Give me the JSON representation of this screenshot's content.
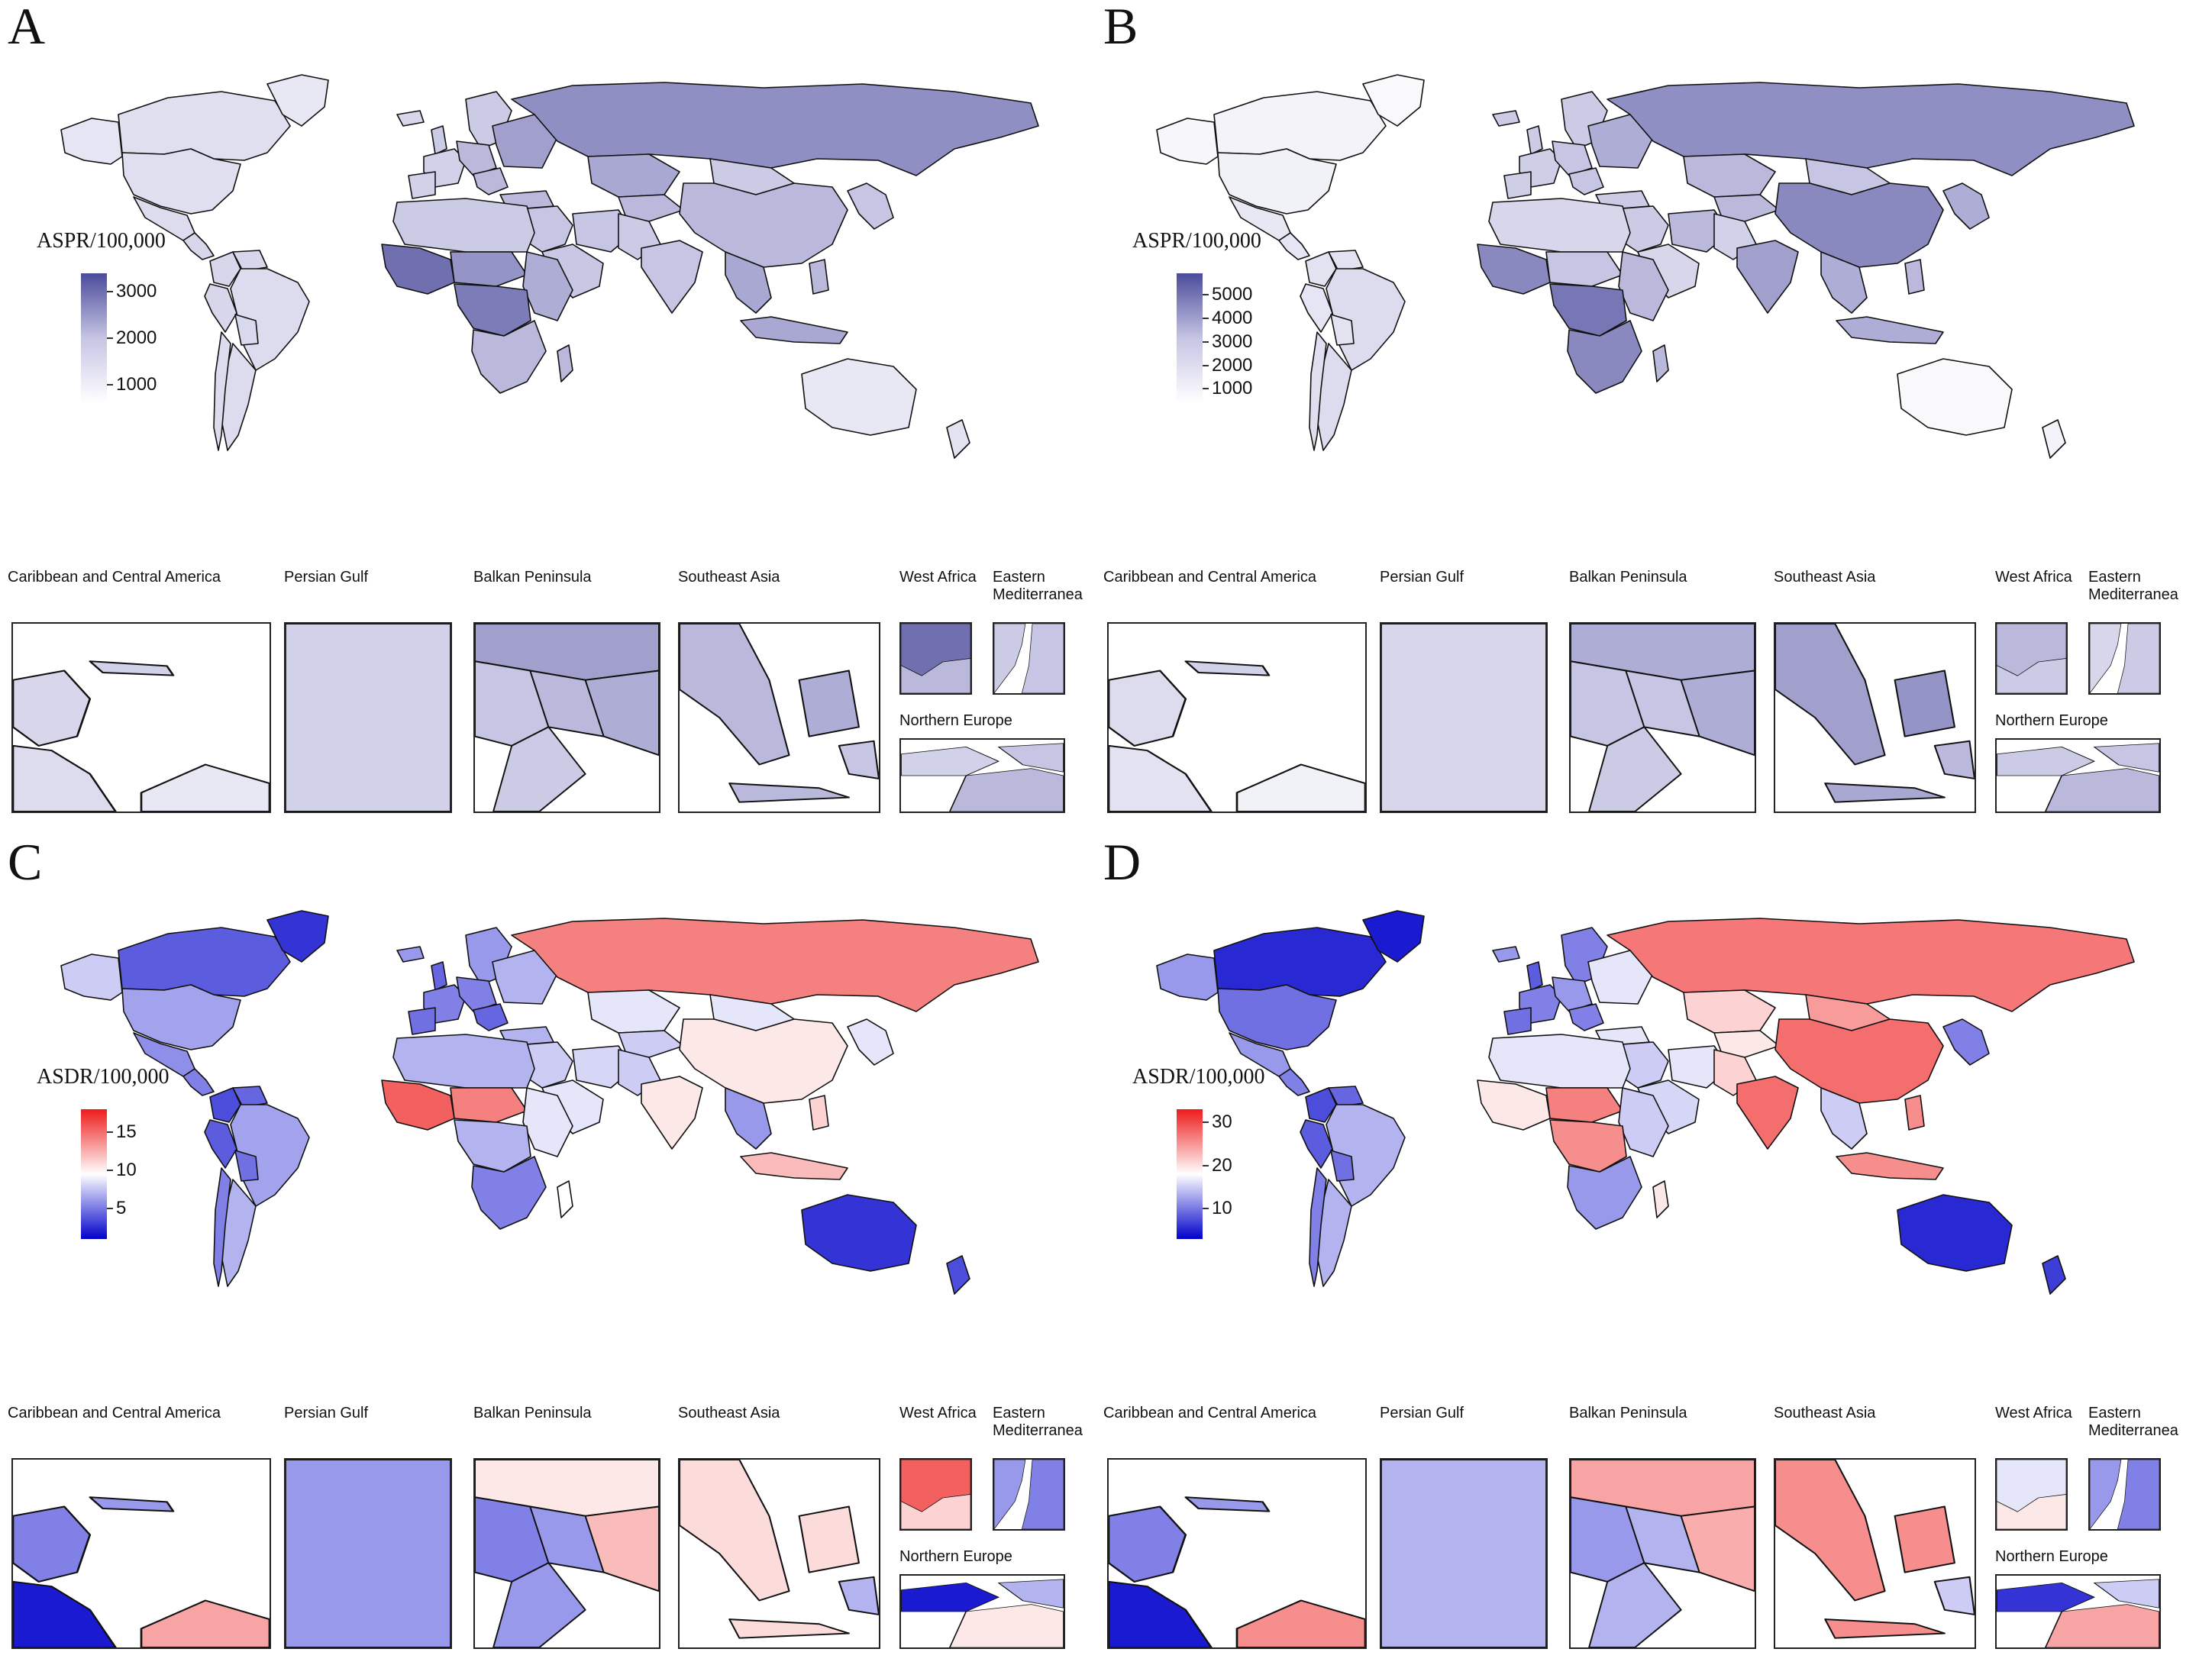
{
  "panels": [
    {
      "letter": "A",
      "legend": {
        "title": "ASPR/100,000",
        "ticks": [
          "3000",
          "2000",
          "1000"
        ],
        "tick_values": [
          3000,
          2000,
          1000
        ],
        "min": 600,
        "max": 3400
      },
      "scale_colors": [
        "#ffffff",
        "#c6c5e3",
        "#4b4b9b"
      ]
    },
    {
      "letter": "B",
      "legend": {
        "title": "ASPR/100,000",
        "ticks": [
          "5000",
          "4000",
          "3000",
          "2000",
          "1000"
        ],
        "tick_values": [
          5000,
          4000,
          3000,
          2000,
          1000
        ],
        "min": 400,
        "max": 5900
      },
      "scale_colors": [
        "#ffffff",
        "#c6c5e3",
        "#4b4b9b"
      ]
    },
    {
      "letter": "C",
      "legend": {
        "title": "ASDR/100,000",
        "ticks": [
          "15",
          "10",
          "5"
        ],
        "tick_values": [
          15,
          10,
          5
        ],
        "min": 1,
        "max": 18
      },
      "scale_colors": [
        "#0000cc",
        "#ffffff",
        "#ee1c1c"
      ]
    },
    {
      "letter": "D",
      "legend": {
        "title": "ASDR/100,000",
        "ticks": [
          "30",
          "20",
          "10"
        ],
        "tick_values": [
          30,
          20,
          10
        ],
        "min": 3,
        "max": 33
      },
      "scale_colors": [
        "#0000cc",
        "#ffffff",
        "#ee1c1c"
      ]
    }
  ],
  "insets": {
    "caribbean": "Caribbean and Central America",
    "persian_gulf": "Persian Gulf",
    "balkan": "Balkan Peninsula",
    "southeast_asia": "Southeast Asia",
    "west_africa": "West Africa",
    "eastern_mediterranea": "Eastern\nMediterranea",
    "northern_europe": "Northern Europe"
  }
}
